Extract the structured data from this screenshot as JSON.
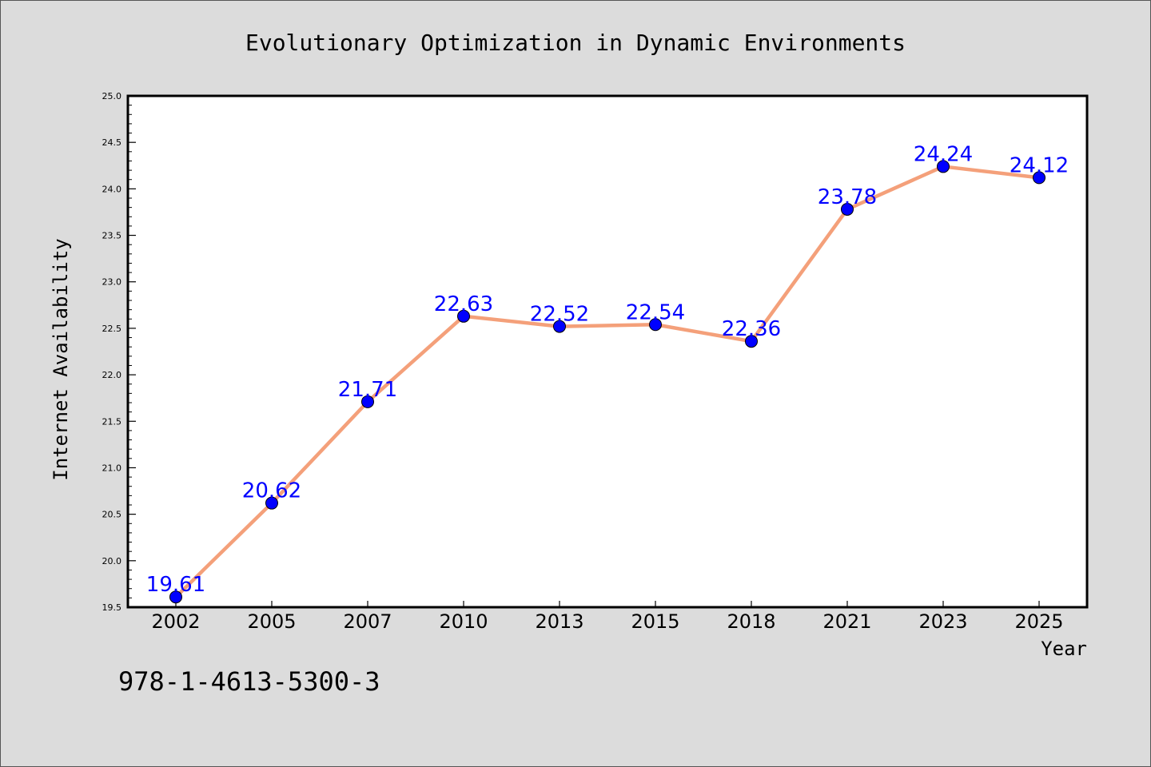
{
  "chart_data": {
    "type": "line",
    "title": "Evolutionary Optimization in Dynamic Environments",
    "xlabel": "Year",
    "ylabel": "Internet Availability",
    "categories": [
      "2002",
      "2005",
      "2007",
      "2010",
      "2013",
      "2015",
      "2018",
      "2021",
      "2023",
      "2025"
    ],
    "series": [
      {
        "values": [
          19.61,
          20.62,
          21.71,
          22.63,
          22.52,
          22.54,
          22.36,
          23.78,
          24.24,
          24.12
        ],
        "line_color": "#f4a07a",
        "marker_color": "#0000ff"
      }
    ],
    "data_labels": [
      "19.61",
      "20.62",
      "21.71",
      "22.63",
      "22.52",
      "22.54",
      "22.36",
      "23.78",
      "24.24",
      "24.12"
    ],
    "ylim": [
      19.5,
      25.0
    ],
    "yticks": [
      "19.5",
      "20.0",
      "20.5",
      "21.0",
      "21.5",
      "22.0",
      "22.5",
      "23.0",
      "23.5",
      "24.0",
      "24.5",
      "25.0"
    ],
    "grid": false,
    "legend": "none"
  },
  "footer": {
    "isbn": "978-1-4613-5300-3"
  },
  "colors": {
    "background": "#dcdcdc",
    "plot_background": "#ffffff",
    "line": "#f4a07a",
    "marker": "#0000ff",
    "data_label": "#0000ff"
  }
}
